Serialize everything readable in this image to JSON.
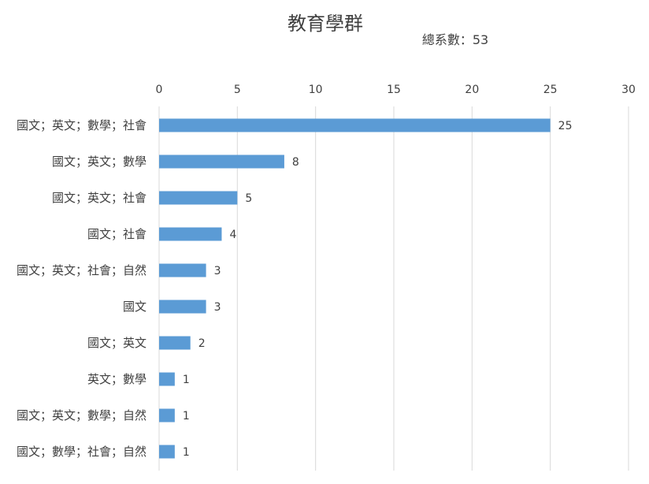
{
  "chart_data": {
    "type": "bar",
    "orientation": "horizontal",
    "title": "教育學群",
    "subtitle": "總系數：53",
    "categories": [
      "國文；英文；數學；社會",
      "國文；英文；數學",
      "國文；英文；社會",
      "國文；社會",
      "國文；英文；社會；自然",
      "國文",
      "國文；英文",
      "英文；數學",
      "國文；英文；數學；自然",
      "國文；數學；社會；自然"
    ],
    "values": [
      25,
      8,
      5,
      4,
      3,
      3,
      2,
      1,
      1,
      1
    ],
    "xlim": [
      0,
      30
    ],
    "xticks": [
      0,
      5,
      10,
      15,
      20,
      25,
      30
    ],
    "axis_position": "top",
    "grid": true,
    "legend": "none",
    "data_labels": true,
    "bar_color": "#5b9bd5",
    "grid_color": "#d9d9d9",
    "text_color": "#404040"
  }
}
